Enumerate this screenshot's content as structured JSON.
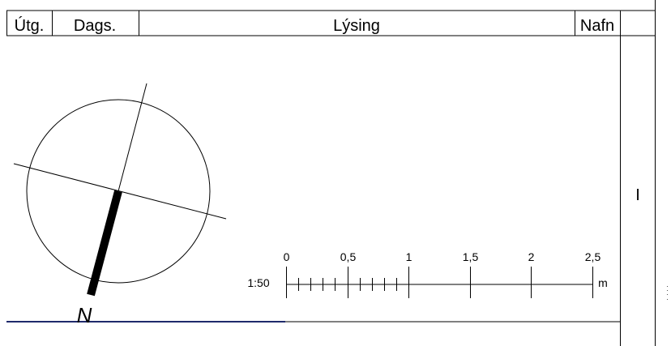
{
  "header": {
    "revision_label": "Útg.",
    "date_label": "Dags.",
    "description_label": "Lýsing",
    "name_label": "Nafn"
  },
  "side_panel": {
    "marker": "I"
  },
  "north_arrow": {
    "label": "N"
  },
  "scale_bar": {
    "ratio": "1:50",
    "unit": "m",
    "major_ticks": [
      "0",
      "0,5",
      "1",
      "1,5",
      "2",
      "2,5"
    ],
    "minor_divisions_per_half_metre": 5,
    "length_m": 2.5
  },
  "colors": {
    "line": "#000000",
    "footer_accent": "#1f2a6b"
  }
}
